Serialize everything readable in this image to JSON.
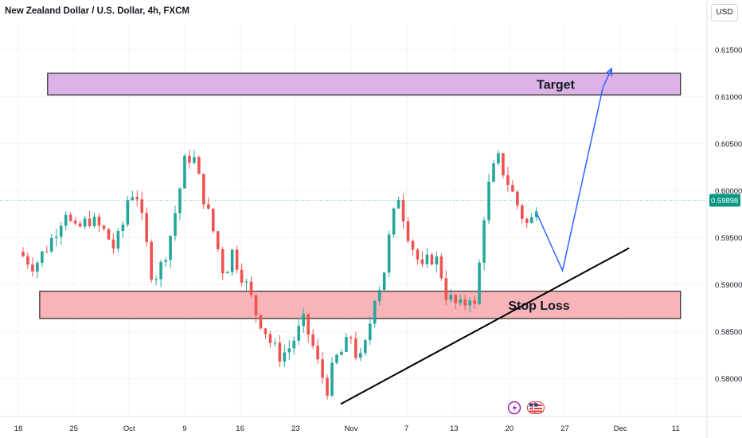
{
  "header": {
    "title": "New Zealand Dollar / U.S. Dollar, 4h, FXCM",
    "currency_button": "USD"
  },
  "colors": {
    "bull": "#26a69a",
    "bear": "#ef5350",
    "target_fill": "#dbb3e6",
    "stop_fill": "#f8b4b8",
    "arrow": "#2962ff",
    "trendline": "#000000",
    "price_tag": "#089981",
    "grid": "#f0f3fa"
  },
  "chart_data": {
    "type": "candlestick",
    "symbol": "NZDUSD",
    "timeframe": "4h",
    "ylim": [
      0.577,
      0.617
    ],
    "y_ticks": [
      "0.58000",
      "0.58500",
      "0.59000",
      "0.59500",
      "0.60000",
      "0.60500",
      "0.61000",
      "0.61500"
    ],
    "x_ticks": [
      "18",
      "25",
      "Oct",
      "9",
      "16",
      "23",
      "Nov",
      "7",
      "13",
      "20",
      "27",
      "Dec",
      "11"
    ],
    "x_tick_values": [
      0,
      7,
      14,
      21,
      28,
      35,
      42,
      49,
      55,
      62,
      69,
      76,
      83
    ],
    "current_price": "0.59898",
    "close_path": [
      [
        0,
        0.5935
      ],
      [
        2,
        0.592
      ],
      [
        4,
        0.5945
      ],
      [
        6,
        0.598
      ],
      [
        7,
        0.5955
      ],
      [
        9,
        0.597
      ],
      [
        11,
        0.5955
      ],
      [
        12,
        0.594
      ],
      [
        13,
        0.5955
      ],
      [
        14,
        0.6
      ],
      [
        15,
        0.5995
      ],
      [
        16,
        0.595
      ],
      [
        17,
        0.5905
      ],
      [
        18,
        0.592
      ],
      [
        19,
        0.5945
      ],
      [
        20,
        0.5985
      ],
      [
        21,
        0.603
      ],
      [
        22,
        0.604
      ],
      [
        23,
        0.6005
      ],
      [
        24,
        0.5975
      ],
      [
        25,
        0.5945
      ],
      [
        26,
        0.591
      ],
      [
        27,
        0.5935
      ],
      [
        28,
        0.5915
      ],
      [
        29,
        0.5895
      ],
      [
        30,
        0.587
      ],
      [
        31,
        0.5855
      ],
      [
        32,
        0.5835
      ],
      [
        33,
        0.5825
      ],
      [
        34,
        0.583
      ],
      [
        35,
        0.5845
      ],
      [
        36,
        0.586
      ],
      [
        37,
        0.584
      ],
      [
        38,
        0.581
      ],
      [
        39,
        0.579
      ],
      [
        40,
        0.582
      ],
      [
        41,
        0.583
      ],
      [
        42,
        0.5845
      ],
      [
        43,
        0.5815
      ],
      [
        44,
        0.584
      ],
      [
        45,
        0.589
      ],
      [
        46,
        0.5905
      ],
      [
        47,
        0.596
      ],
      [
        48,
        0.5995
      ],
      [
        49,
        0.596
      ],
      [
        50,
        0.5935
      ],
      [
        51,
        0.5915
      ],
      [
        52,
        0.593
      ],
      [
        53,
        0.5925
      ],
      [
        54,
        0.589
      ],
      [
        55,
        0.588
      ],
      [
        56,
        0.5875
      ],
      [
        57,
        0.589
      ],
      [
        57.8,
        0.587
      ],
      [
        58.5,
        0.596
      ],
      [
        59.5,
        0.601
      ],
      [
        60.5,
        0.6035
      ],
      [
        61.5,
        0.6015
      ],
      [
        62.5,
        0.5995
      ],
      [
        63.5,
        0.5975
      ],
      [
        64.5,
        0.596
      ],
      [
        65.5,
        0.599
      ]
    ],
    "zones": [
      {
        "label": "Target",
        "y_low": 0.6102,
        "y_high": 0.6125,
        "x_start": 3.7,
        "x_end": 83.6
      },
      {
        "label": "Stop Loss",
        "y_low": 0.5864,
        "y_high": 0.5893,
        "x_start": 2.7,
        "x_end": 83.6
      }
    ],
    "trendline": {
      "x": [
        40.7,
        77.1
      ],
      "y": [
        0.5773,
        0.5939
      ]
    },
    "projection": {
      "x": [
        65.5,
        68.7,
        73.8,
        74.9
      ],
      "y": [
        0.5975,
        0.5915,
        0.611,
        0.613
      ]
    },
    "event_icons": [
      "lightning-icon",
      "us-flag-icon"
    ]
  }
}
